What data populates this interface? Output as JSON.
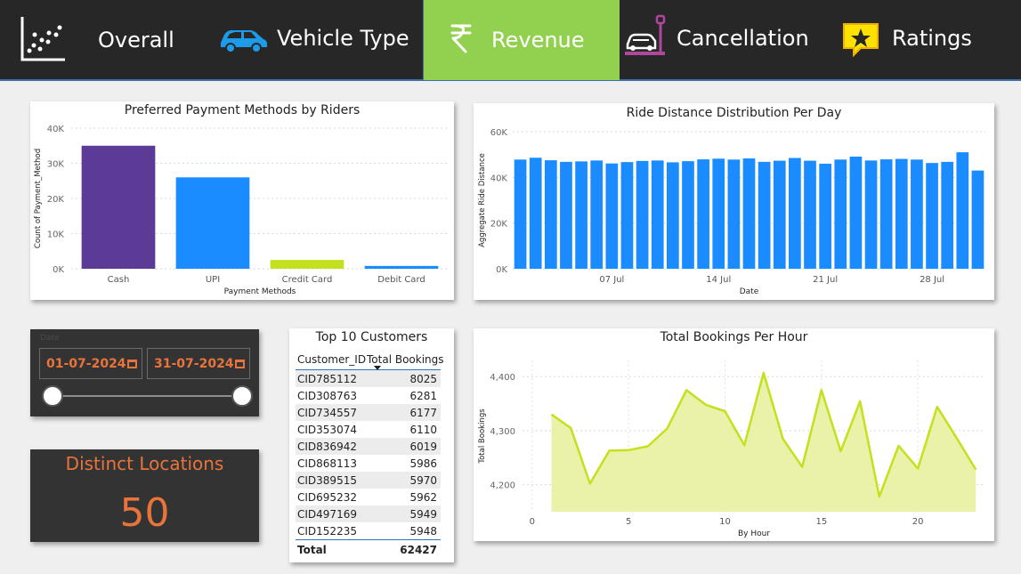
{
  "nav": {
    "items": [
      {
        "label": "Overall",
        "icon": "scatter-plot-icon"
      },
      {
        "label": "Vehicle Type",
        "icon": "car-icon"
      },
      {
        "label": "Revenue",
        "icon": "rupee-icon",
        "active": true
      },
      {
        "label": "Cancellation",
        "icon": "car-parking-icon"
      },
      {
        "label": "Ratings",
        "icon": "star-badge-icon"
      }
    ],
    "active_color": "#92d050",
    "background": "#272727"
  },
  "date_slicer": {
    "label": "Date",
    "start": "01-07-2024",
    "end": "31-07-2024"
  },
  "kpi": {
    "title": "Distinct Locations",
    "value": "50",
    "color": "#e8743b"
  },
  "customers_table": {
    "title": "Top 10 Customers",
    "columns": [
      "Customer_ID",
      "Total Bookings"
    ],
    "rows": [
      [
        "CID785112",
        "8025"
      ],
      [
        "CID308763",
        "6281"
      ],
      [
        "CID734557",
        "6177"
      ],
      [
        "CID353074",
        "6110"
      ],
      [
        "CID836942",
        "6019"
      ],
      [
        "CID868113",
        "5986"
      ],
      [
        "CID389515",
        "5970"
      ],
      [
        "CID695232",
        "5962"
      ],
      [
        "CID497169",
        "5949"
      ],
      [
        "CID152235",
        "5948"
      ]
    ],
    "total_label": "Total",
    "total_value": "62427"
  },
  "chart_data": [
    {
      "id": "payment",
      "type": "bar",
      "title": "Preferred Payment Methods by Riders",
      "xlabel": "Payment Methods",
      "ylabel": "Count of Payment_Method",
      "categories": [
        "Cash",
        "UPI",
        "Credit Card",
        "Debit Card"
      ],
      "values": [
        35000,
        26000,
        2500,
        800
      ],
      "colors": [
        "#5b3b96",
        "#1a8cff",
        "#c5e01c",
        "#1a8cff"
      ],
      "ylim": [
        0,
        40000
      ],
      "yticks": [
        0,
        10000,
        20000,
        30000,
        40000
      ],
      "ytick_labels": [
        "0K",
        "10K",
        "20K",
        "30K",
        "40K"
      ],
      "grid": true
    },
    {
      "id": "distance",
      "type": "bar",
      "title": "Ride Distance Distribution Per Day",
      "xlabel": "Date",
      "ylabel": "Aggregate Ride Distance",
      "x": [
        "01 Jul",
        "02 Jul",
        "03 Jul",
        "04 Jul",
        "05 Jul",
        "06 Jul",
        "07 Jul",
        "08 Jul",
        "09 Jul",
        "10 Jul",
        "11 Jul",
        "12 Jul",
        "13 Jul",
        "14 Jul",
        "15 Jul",
        "16 Jul",
        "17 Jul",
        "18 Jul",
        "19 Jul",
        "20 Jul",
        "21 Jul",
        "22 Jul",
        "23 Jul",
        "24 Jul",
        "25 Jul",
        "26 Jul",
        "27 Jul",
        "28 Jul",
        "29 Jul",
        "30 Jul",
        "31 Jul"
      ],
      "values": [
        47800,
        48600,
        47500,
        46800,
        47000,
        47400,
        46100,
        46700,
        47200,
        47400,
        46600,
        47100,
        47900,
        48200,
        47800,
        48300,
        46800,
        47300,
        48500,
        47300,
        46000,
        47800,
        49100,
        47400,
        47900,
        48100,
        47800,
        46300,
        46800,
        51000,
        43000
      ],
      "color": "#1a8cff",
      "ylim": [
        0,
        60000
      ],
      "yticks": [
        0,
        20000,
        40000,
        60000
      ],
      "ytick_labels": [
        "0K",
        "20K",
        "40K",
        "60K"
      ],
      "xtick_labels": [
        {
          "index": 6,
          "label": "07 Jul"
        },
        {
          "index": 13,
          "label": "14 Jul"
        },
        {
          "index": 20,
          "label": "21 Jul"
        },
        {
          "index": 27,
          "label": "28 Jul"
        }
      ],
      "grid": true
    },
    {
      "id": "hourly",
      "type": "area",
      "title": "Total Bookings Per Hour",
      "xlabel": "By Hour",
      "ylabel": "Total Bookings",
      "x": [
        1,
        2,
        3,
        4,
        5,
        6,
        7,
        8,
        9,
        10,
        11,
        12,
        13,
        14,
        15,
        16,
        17,
        18,
        19,
        20,
        21,
        22,
        23
      ],
      "values": [
        4330,
        4305,
        4202,
        4263,
        4264,
        4271,
        4304,
        4375,
        4348,
        4336,
        4273,
        4407,
        4285,
        4233,
        4375,
        4262,
        4354,
        4178,
        4272,
        4230,
        4344,
        4287,
        4228
      ],
      "line_color": "#c5e01c",
      "fill_color": "#e8f0a0",
      "xlim": [
        -0.5,
        23.5
      ],
      "ylim": [
        4150,
        4430
      ],
      "xticks": [
        0,
        5,
        10,
        15,
        20
      ],
      "yticks": [
        4200,
        4300,
        4400
      ],
      "ytick_labels": [
        "4,200",
        "4,300",
        "4,400"
      ],
      "grid": true
    }
  ]
}
